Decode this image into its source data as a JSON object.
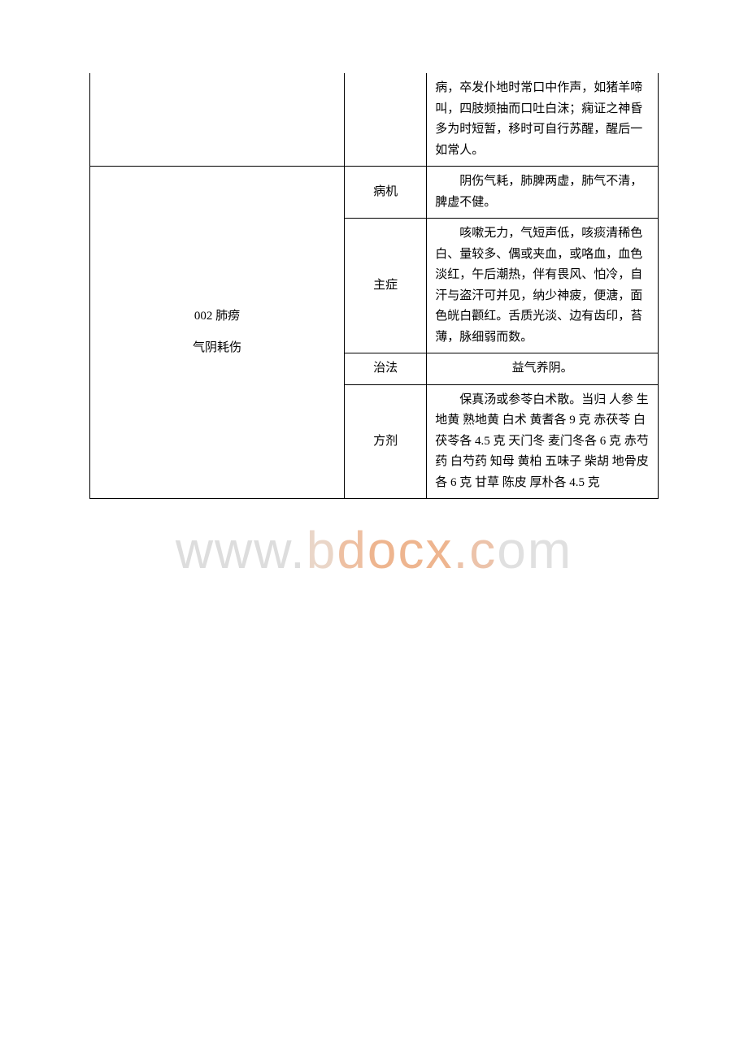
{
  "watermark": {
    "text_parts": [
      {
        "t": "www.",
        "cls": "g1"
      },
      {
        "t": "b",
        "cls": "g2"
      },
      {
        "t": "d",
        "cls": "g3"
      },
      {
        "t": "ocx",
        "cls": "g4"
      },
      {
        "t": ".c",
        "cls": "g5"
      },
      {
        "t": "om",
        "cls": "g6"
      }
    ],
    "font_size": 64
  },
  "table": {
    "rows": [
      {
        "left": "",
        "mid": "",
        "right": "病，卒发仆地时常口中作声，如猪羊啼叫，四肢频抽而口吐白沫；痫证之神昏多为时短暂，移时可自行苏醒，醒后一如常人。",
        "no_left_border_top": true
      }
    ],
    "group": {
      "left_title": "002 肺痨",
      "left_sub": "气阴耗伤",
      "items": [
        {
          "mid": "病机",
          "right": "阴伤气耗，肺脾两虚，肺气不清，脾虚不健。"
        },
        {
          "mid": "主症",
          "right": "咳嗽无力，气短声低，咳痰清稀色白、量较多、偶或夹血，或咯血，血色淡红，午后潮热，伴有畏风、怕冷，自汗与盗汗可并见，纳少神疲，便溏，面色㿠白颧红。舌质光淡、边有齿印，苔薄，脉细弱而数。"
        },
        {
          "mid": "治法",
          "right": "益气养阴。"
        },
        {
          "mid": "方剂",
          "right": "保真汤或参苓白术散。当归 人参 生地黄 熟地黄 白术 黄耆各 9 克 赤茯苓 白茯苓各 4.5 克 天门冬 麦门冬各 6 克 赤芍药 白芍药 知母 黄柏 五味子 柴胡 地骨皮各 6 克 甘草 陈皮 厚朴各 4.5 克"
        }
      ]
    }
  }
}
